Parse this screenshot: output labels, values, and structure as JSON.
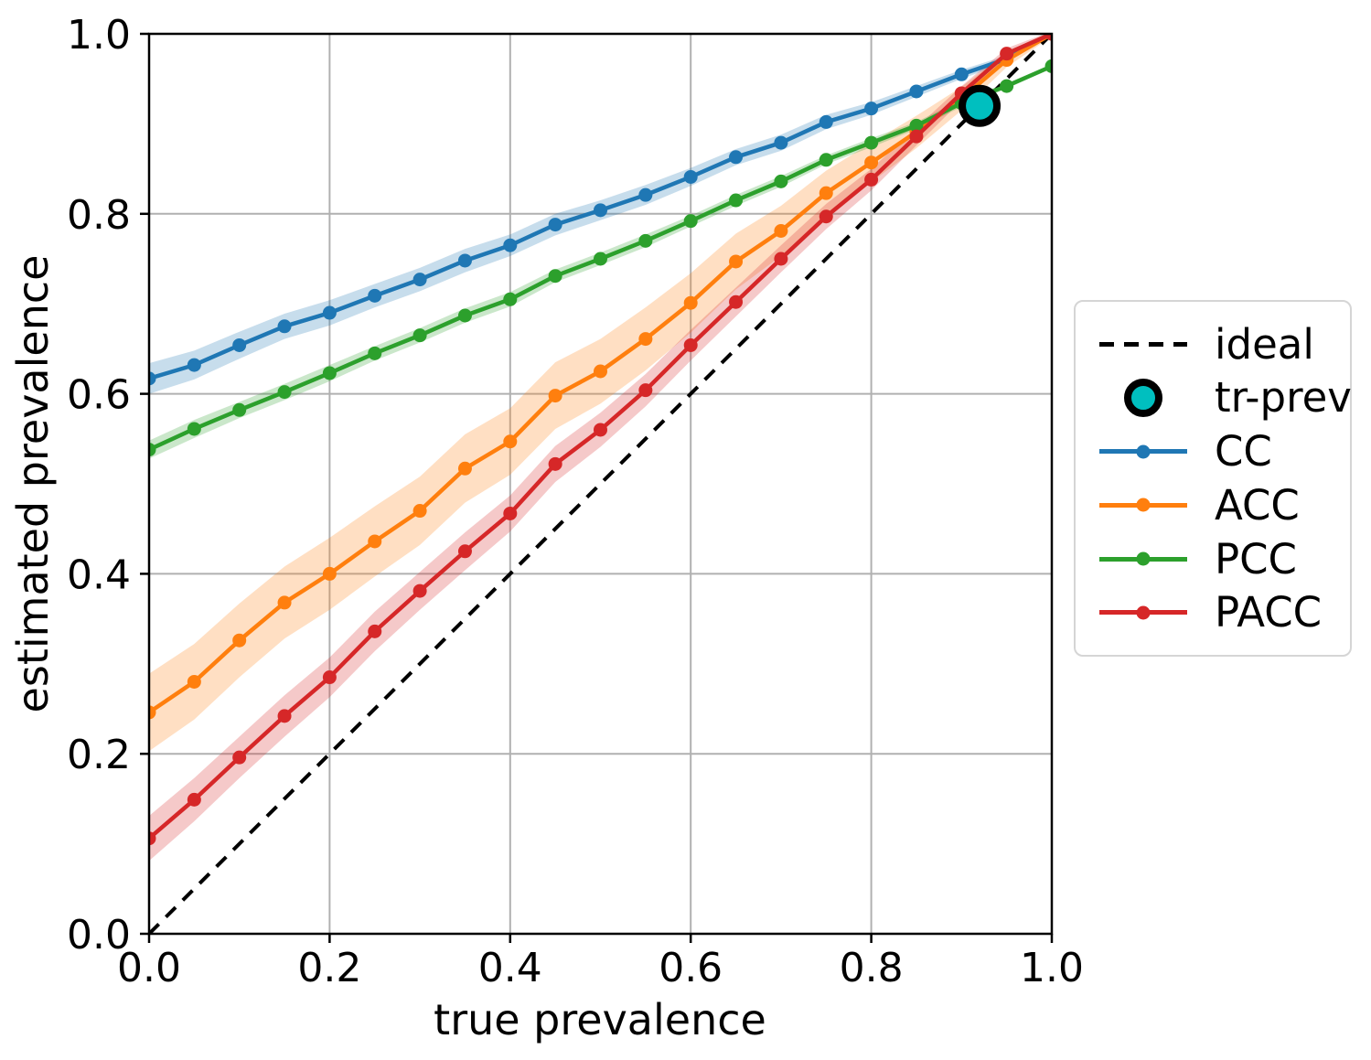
{
  "chart_data": {
    "type": "line",
    "title": "",
    "xlabel": "true prevalence",
    "ylabel": "estimated prevalence",
    "xlim": [
      0.0,
      1.0
    ],
    "ylim": [
      0.0,
      1.0
    ],
    "grid": true,
    "xticks": [
      "0.0",
      "0.2",
      "0.4",
      "0.6",
      "0.8",
      "1.0"
    ],
    "yticks": [
      "0.0",
      "0.2",
      "0.4",
      "0.6",
      "0.8",
      "1.0"
    ],
    "x": [
      0.0,
      0.05,
      0.1,
      0.15,
      0.2,
      0.25,
      0.3,
      0.35,
      0.4,
      0.45,
      0.5,
      0.55,
      0.6,
      0.65,
      0.7,
      0.75,
      0.8,
      0.85,
      0.9,
      0.95,
      1.0
    ],
    "series": [
      {
        "name": "CC",
        "color": "#1f77b4",
        "values": [
          0.617,
          0.632,
          0.654,
          0.675,
          0.69,
          0.709,
          0.727,
          0.748,
          0.765,
          0.788,
          0.804,
          0.821,
          0.841,
          0.863,
          0.879,
          0.902,
          0.917,
          0.936,
          0.955,
          0.972,
          1.0
        ],
        "band_halfwidth": [
          0.017,
          0.016,
          0.015,
          0.014,
          0.014,
          0.013,
          0.013,
          0.013,
          0.012,
          0.012,
          0.011,
          0.011,
          0.01,
          0.009,
          0.009,
          0.008,
          0.007,
          0.006,
          0.005,
          0.004,
          0.002
        ]
      },
      {
        "name": "ACC",
        "color": "#ff7f0e",
        "values": [
          0.246,
          0.28,
          0.326,
          0.368,
          0.4,
          0.436,
          0.47,
          0.517,
          0.547,
          0.598,
          0.625,
          0.661,
          0.701,
          0.747,
          0.781,
          0.823,
          0.857,
          0.891,
          0.928,
          0.971,
          1.0
        ],
        "band_halfwidth": [
          0.043,
          0.042,
          0.041,
          0.04,
          0.04,
          0.039,
          0.038,
          0.038,
          0.037,
          0.037,
          0.036,
          0.035,
          0.033,
          0.031,
          0.028,
          0.025,
          0.022,
          0.018,
          0.013,
          0.008,
          0.003
        ]
      },
      {
        "name": "PCC",
        "color": "#2ca02c",
        "values": [
          0.538,
          0.561,
          0.582,
          0.602,
          0.623,
          0.645,
          0.665,
          0.687,
          0.705,
          0.731,
          0.75,
          0.77,
          0.792,
          0.815,
          0.836,
          0.86,
          0.879,
          0.898,
          0.923,
          0.942,
          0.964
        ],
        "band_halfwidth": [
          0.01,
          0.01,
          0.009,
          0.009,
          0.009,
          0.008,
          0.008,
          0.008,
          0.008,
          0.007,
          0.007,
          0.007,
          0.006,
          0.006,
          0.006,
          0.005,
          0.005,
          0.004,
          0.004,
          0.003,
          0.002
        ]
      },
      {
        "name": "PACC",
        "color": "#d62728",
        "values": [
          0.106,
          0.149,
          0.196,
          0.242,
          0.285,
          0.336,
          0.381,
          0.425,
          0.467,
          0.522,
          0.56,
          0.604,
          0.654,
          0.702,
          0.75,
          0.797,
          0.838,
          0.886,
          0.934,
          0.978,
          1.0
        ],
        "band_halfwidth": [
          0.025,
          0.024,
          0.023,
          0.023,
          0.022,
          0.022,
          0.021,
          0.021,
          0.02,
          0.02,
          0.019,
          0.018,
          0.017,
          0.016,
          0.015,
          0.014,
          0.012,
          0.01,
          0.008,
          0.006,
          0.003
        ]
      }
    ],
    "ideal_line": {
      "label": "ideal",
      "from": [
        0.0,
        0.0
      ],
      "to": [
        1.0,
        1.0
      ],
      "style": "dashed",
      "color": "#000000"
    },
    "tr_prev": {
      "label": "tr-prev",
      "x": 0.92,
      "y": 0.92,
      "fill": "#00bfbf",
      "edge": "#000000"
    },
    "legend": {
      "position": "right-outside",
      "items": [
        {
          "label": "ideal"
        },
        {
          "label": "tr-prev"
        },
        {
          "label": "CC"
        },
        {
          "label": "ACC"
        },
        {
          "label": "PCC"
        },
        {
          "label": "PACC"
        }
      ]
    },
    "band_alpha": 0.25,
    "colors": {
      "grid": "#b0b0b0",
      "spine": "#000000",
      "text": "#000000",
      "background": "#ffffff"
    }
  }
}
